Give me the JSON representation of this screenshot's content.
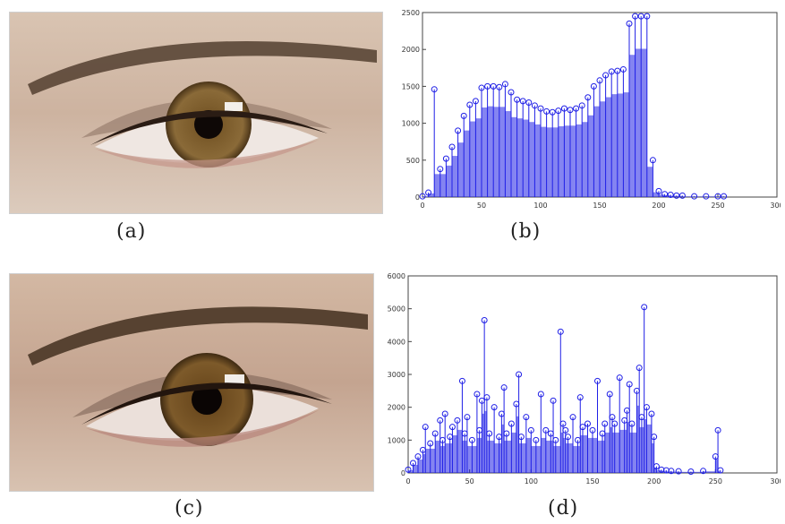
{
  "captions": {
    "a": "(a)",
    "b": "(b)",
    "c": "(c)",
    "d": "(d)"
  },
  "colors": {
    "series": "#1f1fe6",
    "axis": "#444444",
    "background": "#ffffff"
  },
  "icons": {
    "photo_a": "eye-photo",
    "photo_c": "eye-photo"
  },
  "chart_data": [
    {
      "type": "bar",
      "title": "",
      "xlabel": "",
      "ylabel": "",
      "xlim": [
        0,
        300
      ],
      "ylim": [
        0,
        2500
      ],
      "xticks": [
        0,
        50,
        100,
        150,
        200,
        250,
        300
      ],
      "yticks": [
        0,
        500,
        1000,
        1500,
        2000,
        2500
      ],
      "grid": false,
      "series": [
        {
          "x": [
            0,
            5,
            10,
            15,
            20,
            25,
            30,
            35,
            40,
            45,
            50,
            55,
            60,
            65,
            70,
            75,
            80,
            85,
            90,
            95,
            100,
            105,
            110,
            115,
            120,
            125,
            130,
            135,
            140,
            145,
            150,
            155,
            160,
            165,
            170,
            175,
            180,
            185,
            190,
            195,
            200,
            205,
            210,
            215,
            220,
            230,
            240,
            250,
            255
          ],
          "values": [
            10,
            60,
            1460,
            380,
            520,
            680,
            900,
            1100,
            1250,
            1300,
            1480,
            1500,
            1500,
            1490,
            1530,
            1420,
            1320,
            1300,
            1280,
            1240,
            1200,
            1160,
            1150,
            1170,
            1200,
            1180,
            1200,
            1240,
            1350,
            1500,
            1580,
            1650,
            1700,
            1710,
            1730,
            2350,
            2450,
            2450,
            2450,
            500,
            80,
            40,
            30,
            20,
            20,
            10,
            10,
            10,
            10
          ]
        }
      ]
    },
    {
      "type": "bar",
      "title": "",
      "xlabel": "",
      "ylabel": "",
      "xlim": [
        0,
        300
      ],
      "ylim": [
        0,
        6000
      ],
      "xticks": [
        0,
        50,
        100,
        150,
        200,
        250,
        300
      ],
      "yticks": [
        0,
        1000,
        2000,
        3000,
        4000,
        5000,
        6000
      ],
      "grid": false,
      "series": [
        {
          "x": [
            0,
            4,
            8,
            12,
            14,
            18,
            22,
            26,
            28,
            30,
            34,
            36,
            40,
            44,
            46,
            48,
            52,
            56,
            58,
            60,
            62,
            64,
            66,
            70,
            74,
            76,
            78,
            80,
            84,
            88,
            90,
            92,
            96,
            100,
            104,
            108,
            112,
            116,
            118,
            120,
            124,
            126,
            128,
            130,
            134,
            138,
            140,
            142,
            146,
            150,
            154,
            158,
            160,
            164,
            166,
            168,
            172,
            176,
            178,
            180,
            182,
            186,
            188,
            190,
            192,
            194,
            198,
            200,
            202,
            206,
            210,
            214,
            220,
            230,
            240,
            250,
            252,
            254
          ],
          "values": [
            100,
            300,
            500,
            700,
            1400,
            900,
            1200,
            1600,
            1000,
            1800,
            1100,
            1400,
            1600,
            2800,
            1200,
            1700,
            1000,
            2400,
            1300,
            2200,
            4650,
            2300,
            1200,
            2000,
            1100,
            1800,
            2600,
            1200,
            1500,
            2100,
            3000,
            1100,
            1700,
            1300,
            1000,
            2400,
            1300,
            1200,
            2200,
            1000,
            4300,
            1500,
            1300,
            1100,
            1700,
            1000,
            2300,
            1400,
            1500,
            1300,
            2800,
            1200,
            1500,
            2400,
            1700,
            1500,
            2900,
            1600,
            1900,
            2700,
            1500,
            2500,
            3200,
            1700,
            5050,
            2000,
            1800,
            1100,
            200,
            100,
            80,
            60,
            50,
            40,
            60,
            500,
            1300,
            80
          ]
        }
      ]
    }
  ]
}
